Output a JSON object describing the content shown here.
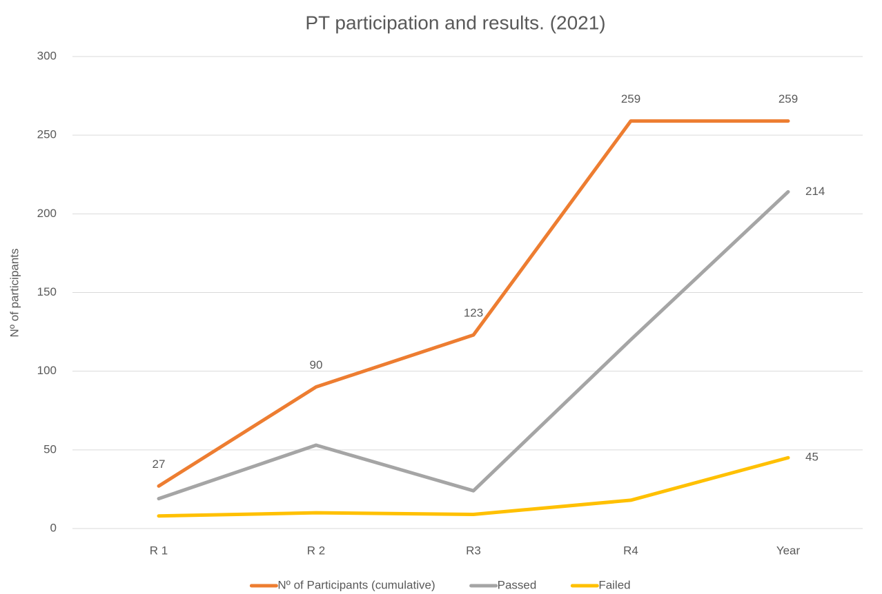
{
  "chart_data": {
    "type": "line",
    "title": "PT participation and results. (2021)",
    "y_label": "Nº of participants",
    "categories": [
      "R 1",
      "R 2",
      "R3",
      "R4",
      "Year"
    ],
    "series": [
      {
        "name": "Nº of Participants (cumulative)",
        "color": "#ed7d31",
        "values": [
          27,
          90,
          123,
          259,
          259
        ],
        "data_labels": "all"
      },
      {
        "name": "Passed",
        "color": "#a5a5a5",
        "values": [
          19,
          53,
          24,
          120,
          214
        ],
        "data_labels": "last"
      },
      {
        "name": "Failed",
        "color": "#ffc000",
        "values": [
          8,
          10,
          9,
          18,
          45
        ],
        "data_labels": "last"
      }
    ],
    "ylim": [
      0,
      300
    ],
    "yticks": [
      0,
      50,
      100,
      150,
      200,
      250,
      300
    ],
    "grid": true,
    "legend": "bottom"
  }
}
